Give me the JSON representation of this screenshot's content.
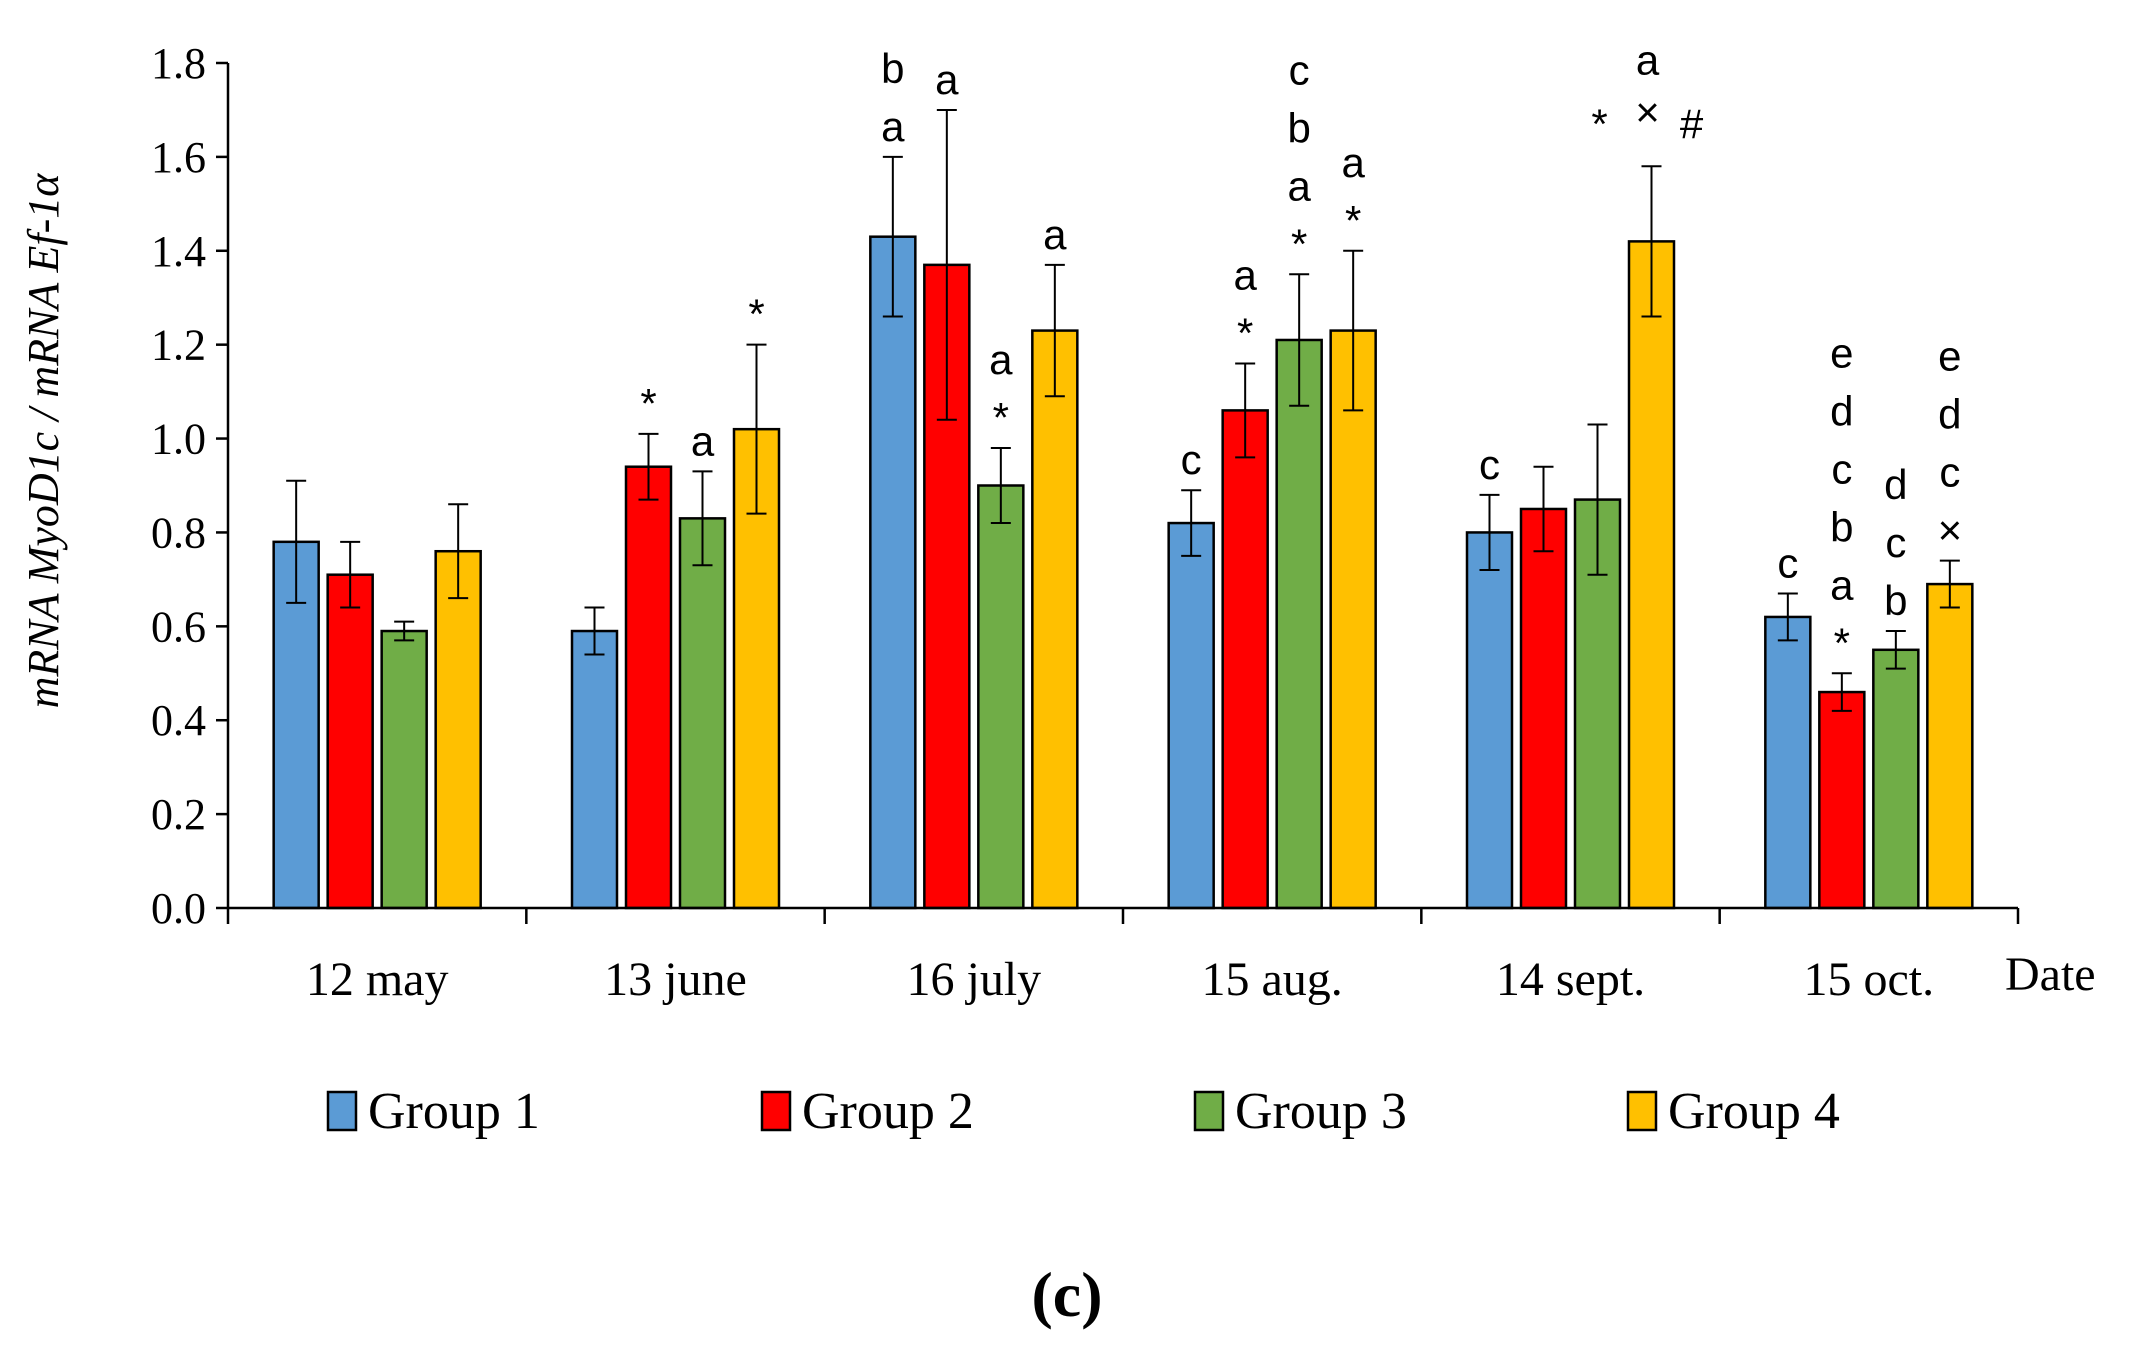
{
  "chart_data": {
    "type": "bar",
    "ylabel": "mRNA MyoD1c / mRNA Ef-1α",
    "xlabel": "Date",
    "ylim": [
      0,
      1.8
    ],
    "yticks": [
      "0.0",
      "0.2",
      "0.4",
      "0.6",
      "0.8",
      "1.0",
      "1.2",
      "1.4",
      "1.6",
      "1.8"
    ],
    "categories": [
      "12 may",
      "13 june",
      "16 july",
      "15 aug.",
      "14 sept.",
      "15 oct."
    ],
    "series": [
      {
        "name": "Group 1",
        "color": "#5B9BD5",
        "values": [
          0.78,
          0.59,
          1.43,
          0.82,
          0.8,
          0.62
        ],
        "errors": [
          0.13,
          0.05,
          0.17,
          0.07,
          0.08,
          0.05
        ],
        "annotations": [
          [],
          [],
          [
            "b",
            "a"
          ],
          [
            "c"
          ],
          [
            "c"
          ],
          [
            "c"
          ]
        ]
      },
      {
        "name": "Group 2",
        "color": "#FF0000",
        "values": [
          0.71,
          0.94,
          1.37,
          1.06,
          0.85,
          0.46
        ],
        "errors": [
          0.07,
          0.07,
          0.33,
          0.1,
          0.09,
          0.04
        ],
        "annotations": [
          [],
          [
            "*"
          ],
          [
            "a"
          ],
          [
            "a",
            "*"
          ],
          [],
          [
            "e",
            "d",
            "c",
            "b",
            "a",
            "*"
          ]
        ]
      },
      {
        "name": "Group 3",
        "color": "#70AD47",
        "values": [
          0.59,
          0.83,
          0.9,
          1.21,
          0.87,
          0.55
        ],
        "errors": [
          0.02,
          0.1,
          0.08,
          0.14,
          0.16,
          0.04
        ],
        "annotations": [
          [],
          [
            "a"
          ],
          [
            "a",
            "*"
          ],
          [
            "c",
            "b",
            "a",
            "*"
          ],
          [],
          [
            "d",
            "c",
            "b"
          ]
        ]
      },
      {
        "name": "Group 4",
        "color": "#FFC000",
        "values": [
          0.76,
          1.02,
          1.23,
          1.23,
          1.42,
          0.69
        ],
        "errors": [
          0.1,
          0.18,
          0.14,
          0.17,
          0.16,
          0.05
        ],
        "annotations": [
          [],
          [
            "*"
          ],
          [
            "a"
          ],
          [
            "a",
            "*"
          ],
          [
            "a",
            "*",
            "×",
            "#"
          ],
          [
            "e",
            "d",
            "c",
            "×"
          ]
        ]
      }
    ]
  },
  "panel_label": "(c)"
}
